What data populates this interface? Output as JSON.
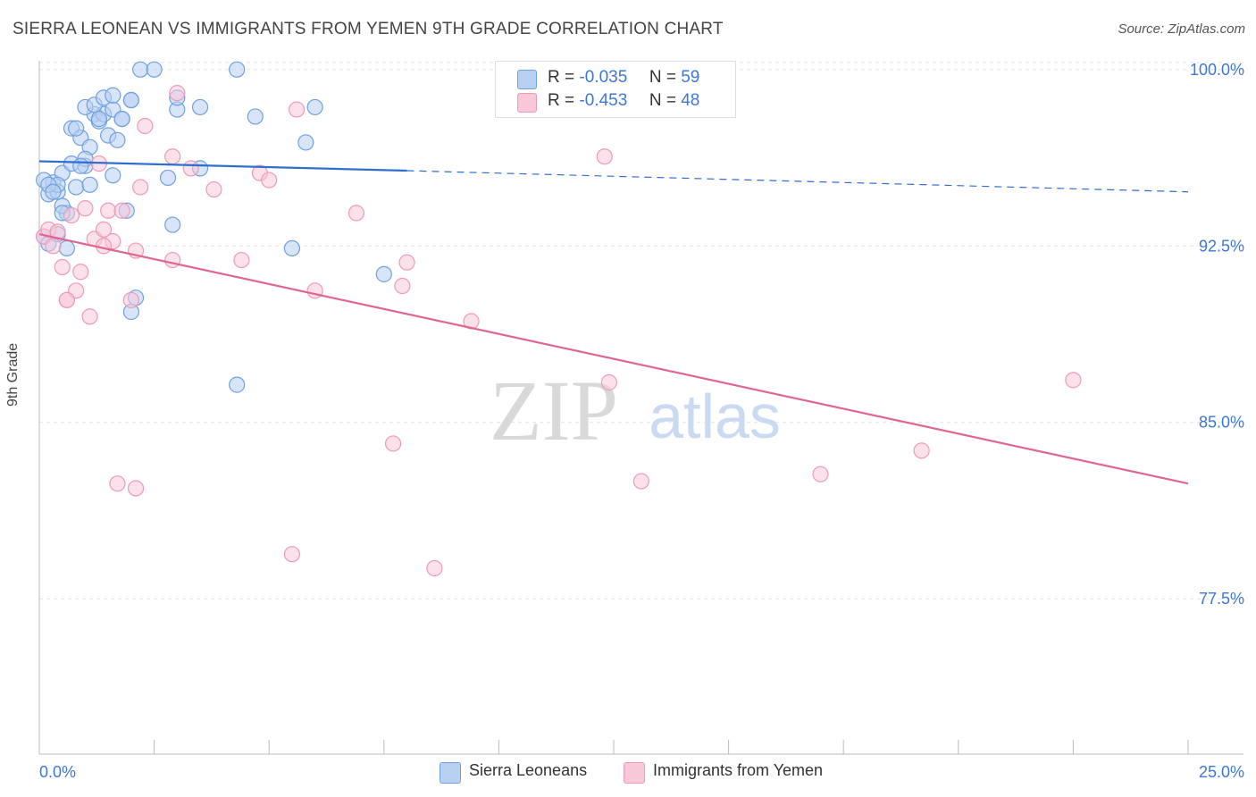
{
  "title": "SIERRA LEONEAN VS IMMIGRANTS FROM YEMEN 9TH GRADE CORRELATION CHART",
  "source": "Source: ZipAtlas.com",
  "watermark": {
    "zip": "ZIP",
    "atlas": "atlas"
  },
  "colors": {
    "blue": "#6fa0e0",
    "blue_fill": "#b8d0f2",
    "blue_line": "#2f6fd0",
    "pink": "#ee9ab8",
    "pink_fill": "#f8c8d8",
    "pink_line": "#e0658f",
    "axis_text": "#3c78d8"
  },
  "legend": {
    "r_label": "R =",
    "n_label": "N =",
    "series": [
      {
        "r": "-0.035",
        "n": "59"
      },
      {
        "r": "-0.453",
        "n": "48"
      }
    ]
  },
  "bottom_legend": [
    "Sierra Leoneans",
    "Immigrants from Yemen"
  ],
  "chart_data": {
    "type": "scatter",
    "title": "SIERRA LEONEAN VS IMMIGRANTS FROM YEMEN 9TH GRADE CORRELATION CHART",
    "xlabel": "",
    "ylabel": "9th Grade",
    "xlim": [
      0,
      25
    ],
    "ylim": [
      70.9,
      100.6
    ],
    "x_tick_labels": [
      "0.0%",
      "25.0%"
    ],
    "y_ticks": [
      100.0,
      92.5,
      85.0,
      77.5
    ],
    "y_tick_labels": [
      "100.0%",
      "92.5%",
      "85.0%",
      "77.5%"
    ],
    "series": [
      {
        "name": "Sierra Leoneans",
        "r": -0.035,
        "n": 59,
        "trend": {
          "x0": 0,
          "y0": 96.1,
          "x1": 8.0,
          "y1": 95.7,
          "dash_x1": 25,
          "dash_y1": 94.8
        },
        "points": [
          [
            0.2,
            94.7
          ],
          [
            0.3,
            95.2
          ],
          [
            0.4,
            94.8
          ],
          [
            0.5,
            95.6
          ],
          [
            0.6,
            93.9
          ],
          [
            0.7,
            97.5
          ],
          [
            0.8,
            95.0
          ],
          [
            0.9,
            97.1
          ],
          [
            1.0,
            95.9
          ],
          [
            1.1,
            96.7
          ],
          [
            1.2,
            98.1
          ],
          [
            1.3,
            97.8
          ],
          [
            1.4,
            98.1
          ],
          [
            1.5,
            97.2
          ],
          [
            1.6,
            98.3
          ],
          [
            1.7,
            97.0
          ],
          [
            1.8,
            97.9
          ],
          [
            1.9,
            94.0
          ],
          [
            2.0,
            98.7
          ],
          [
            0.4,
            95.1
          ],
          [
            0.5,
            94.2
          ],
          [
            0.6,
            92.4
          ],
          [
            0.7,
            96.0
          ],
          [
            0.8,
            97.5
          ],
          [
            1.0,
            98.4
          ],
          [
            1.2,
            98.5
          ],
          [
            1.4,
            98.8
          ],
          [
            1.6,
            95.5
          ],
          [
            1.8,
            97.9
          ],
          [
            2.2,
            100.0
          ],
          [
            2.5,
            100.0
          ],
          [
            3.0,
            98.3
          ],
          [
            3.5,
            95.8
          ],
          [
            2.9,
            93.4
          ],
          [
            2.1,
            90.3
          ],
          [
            2.0,
            89.7
          ],
          [
            4.3,
            86.6
          ],
          [
            5.5,
            92.4
          ],
          [
            7.5,
            91.3
          ],
          [
            5.8,
            96.9
          ],
          [
            6.0,
            98.4
          ],
          [
            4.7,
            98.0
          ],
          [
            4.3,
            100.0
          ],
          [
            3.5,
            98.4
          ],
          [
            3.0,
            98.8
          ],
          [
            2.0,
            98.7
          ],
          [
            0.1,
            95.3
          ],
          [
            0.2,
            95.1
          ],
          [
            0.3,
            94.8
          ],
          [
            0.1,
            92.9
          ],
          [
            0.2,
            92.6
          ],
          [
            0.4,
            93.0
          ],
          [
            1.0,
            96.2
          ],
          [
            1.1,
            95.1
          ],
          [
            2.8,
            95.4
          ],
          [
            1.6,
            98.9
          ],
          [
            0.9,
            95.9
          ],
          [
            0.5,
            93.9
          ],
          [
            1.3,
            97.9
          ]
        ]
      },
      {
        "name": "Immigrants from Yemen",
        "r": -0.453,
        "n": 48,
        "trend": {
          "x0": 0,
          "y0": 93.0,
          "x1": 25,
          "y1": 82.4
        },
        "points": [
          [
            0.1,
            92.9
          ],
          [
            0.2,
            93.2
          ],
          [
            0.3,
            92.5
          ],
          [
            0.4,
            93.1
          ],
          [
            0.5,
            91.6
          ],
          [
            0.6,
            90.2
          ],
          [
            0.7,
            93.8
          ],
          [
            0.8,
            90.6
          ],
          [
            0.9,
            91.4
          ],
          [
            1.0,
            94.1
          ],
          [
            1.1,
            89.5
          ],
          [
            1.2,
            92.8
          ],
          [
            1.3,
            96.0
          ],
          [
            1.4,
            93.2
          ],
          [
            1.5,
            94.0
          ],
          [
            1.6,
            92.7
          ],
          [
            1.8,
            94.0
          ],
          [
            2.0,
            90.2
          ],
          [
            2.1,
            92.3
          ],
          [
            2.2,
            95.0
          ],
          [
            2.3,
            97.6
          ],
          [
            2.9,
            96.3
          ],
          [
            2.9,
            91.9
          ],
          [
            3.0,
            99.0
          ],
          [
            3.3,
            95.8
          ],
          [
            3.8,
            94.9
          ],
          [
            4.4,
            91.9
          ],
          [
            4.8,
            95.6
          ],
          [
            5.0,
            95.3
          ],
          [
            5.6,
            98.3
          ],
          [
            6.0,
            90.6
          ],
          [
            6.9,
            93.9
          ],
          [
            7.7,
            84.1
          ],
          [
            7.9,
            90.8
          ],
          [
            8.0,
            91.8
          ],
          [
            9.4,
            89.3
          ],
          [
            8.6,
            78.8
          ],
          [
            5.5,
            79.4
          ],
          [
            1.7,
            82.4
          ],
          [
            2.1,
            82.2
          ],
          [
            12.3,
            96.3
          ],
          [
            12.4,
            86.7
          ],
          [
            13.1,
            82.5
          ],
          [
            17.0,
            82.8
          ],
          [
            19.2,
            83.8
          ],
          [
            22.5,
            86.8
          ],
          [
            0.6,
            90.2
          ],
          [
            1.4,
            92.5
          ]
        ]
      }
    ],
    "grid": true,
    "legend_position": "top-center"
  }
}
